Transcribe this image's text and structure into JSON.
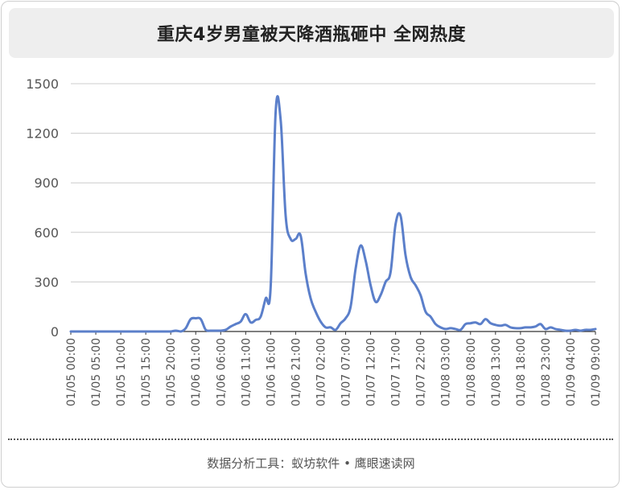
{
  "title": "重庆4岁男童被天降酒瓶砸中 全网热度",
  "footer": "数据分析工具：蚁坊软件 • 鹰眼速读网",
  "colors": {
    "line": "#5b7fca",
    "grid": "#cccccc",
    "axis": "#333333",
    "tick_text": "#555555"
  },
  "chart_data": {
    "type": "line",
    "title": "重庆4岁男童被天降酒瓶砸中 全网热度",
    "xlabel": "",
    "ylabel": "",
    "ylim": [
      0,
      1500
    ],
    "yticks": [
      0,
      300,
      600,
      900,
      1200,
      1500
    ],
    "grid": true,
    "x_tick_labels": [
      "01/05 00:00",
      "01/05 05:00",
      "01/05 10:00",
      "01/05 15:00",
      "01/05 20:00",
      "01/06 01:00",
      "01/06 06:00",
      "01/06 11:00",
      "01/06 16:00",
      "01/06 21:00",
      "01/07 02:00",
      "01/07 07:00",
      "01/07 12:00",
      "01/07 17:00",
      "01/07 22:00",
      "01/08 03:00",
      "01/08 08:00",
      "01/08 13:00",
      "01/08 18:00",
      "01/08 23:00",
      "01/09 04:00",
      "01/09 09:00"
    ],
    "x_hours": [
      0,
      1,
      2,
      3,
      4,
      5,
      6,
      7,
      8,
      9,
      10,
      11,
      12,
      13,
      14,
      15,
      16,
      17,
      18,
      19,
      20,
      21,
      22,
      23,
      24,
      25,
      26,
      27,
      28,
      29,
      30,
      31,
      32,
      33,
      34,
      35,
      36,
      37,
      38,
      39,
      40,
      41,
      42,
      43,
      44,
      45,
      46,
      47,
      48,
      49,
      50,
      51,
      52,
      53,
      54,
      55,
      56,
      57,
      58,
      59,
      60,
      61,
      62,
      63,
      64,
      65,
      66,
      67,
      68,
      69,
      70,
      71,
      72,
      73,
      74,
      75,
      76,
      77,
      78,
      79,
      80,
      81,
      82,
      83,
      84,
      85,
      86,
      87,
      88,
      89,
      90,
      91,
      92,
      93,
      94,
      95,
      96,
      97,
      98,
      99,
      100,
      101,
      102,
      103,
      104,
      105
    ],
    "values": [
      0,
      0,
      0,
      0,
      0,
      0,
      0,
      0,
      0,
      0,
      0,
      0,
      0,
      0,
      0,
      0,
      0,
      0,
      0,
      0,
      0,
      5,
      0,
      20,
      75,
      80,
      75,
      10,
      5,
      5,
      5,
      10,
      30,
      45,
      60,
      105,
      55,
      70,
      90,
      200,
      270,
      1330,
      1280,
      700,
      560,
      560,
      580,
      350,
      200,
      120,
      60,
      25,
      25,
      10,
      50,
      80,
      150,
      380,
      520,
      430,
      280,
      180,
      220,
      300,
      360,
      650,
      700,
      460,
      330,
      280,
      220,
      120,
      90,
      45,
      25,
      15,
      20,
      15,
      10,
      45,
      50,
      55,
      45,
      75,
      50,
      40,
      35,
      40,
      25,
      20,
      20,
      25,
      25,
      30,
      45,
      15,
      25,
      15,
      10,
      5,
      5,
      10,
      5,
      10,
      10,
      15
    ]
  }
}
